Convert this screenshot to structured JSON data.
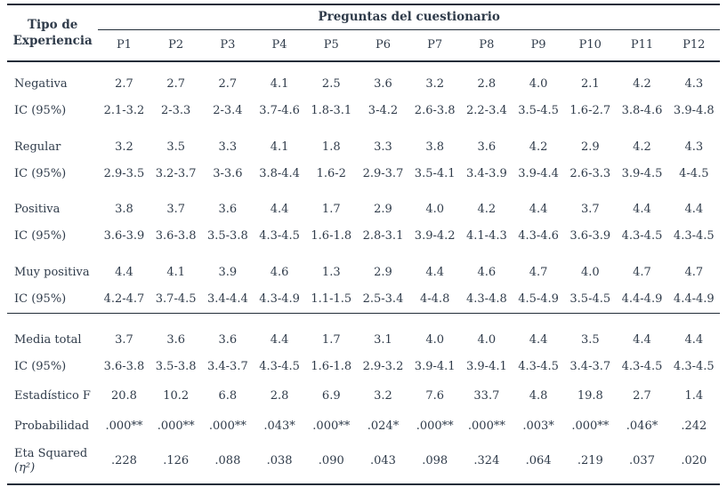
{
  "table": {
    "corner_header": "Tipo de Experiencia",
    "group_header": "Preguntas del cuestionario",
    "columns": [
      "P1",
      "P2",
      "P3",
      "P4",
      "P5",
      "P6",
      "P7",
      "P8",
      "P9",
      "P10",
      "P11",
      "P12"
    ],
    "body": [
      {
        "kind": "group-start",
        "label": "Negativa",
        "values": [
          "2.7",
          "2.7",
          "2.7",
          "4.1",
          "2.5",
          "3.6",
          "3.2",
          "2.8",
          "4.0",
          "2.1",
          "4.2",
          "4.3"
        ]
      },
      {
        "kind": "ic",
        "label": "IC (95%)",
        "values": [
          "2.1-3.2",
          "2-3.3",
          "2-3.4",
          "3.7-4.6",
          "1.8-3.1",
          "3-4.2",
          "2.6-3.8",
          "2.2-3.4",
          "3.5-4.5",
          "1.6-2.7",
          "3.8-4.6",
          "3.9-4.8"
        ]
      },
      {
        "kind": "group-start",
        "label": "Regular",
        "values": [
          "3.2",
          "3.5",
          "3.3",
          "4.1",
          "1.8",
          "3.3",
          "3.8",
          "3.6",
          "4.2",
          "2.9",
          "4.2",
          "4.3"
        ]
      },
      {
        "kind": "ic",
        "label": "IC (95%)",
        "values": [
          "2.9-3.5",
          "3.2-3.7",
          "3-3.6",
          "3.8-4.4",
          "1.6-2",
          "2.9-3.7",
          "3.5-4.1",
          "3.4-3.9",
          "3.9-4.4",
          "2.6-3.3",
          "3.9-4.5",
          "4-4.5"
        ]
      },
      {
        "kind": "group-start",
        "label": "Positiva",
        "values": [
          "3.8",
          "3.7",
          "3.6",
          "4.4",
          "1.7",
          "2.9",
          "4.0",
          "4.2",
          "4.4",
          "3.7",
          "4.4",
          "4.4"
        ]
      },
      {
        "kind": "ic",
        "label": "IC (95%)",
        "values": [
          "3.6-3.9",
          "3.6-3.8",
          "3.5-3.8",
          "4.3-4.5",
          "1.6-1.8",
          "2.8-3.1",
          "3.9-4.2",
          "4.1-4.3",
          "4.3-4.6",
          "3.6-3.9",
          "4.3-4.5",
          "4.3-4.5"
        ]
      },
      {
        "kind": "group-start",
        "label": "Muy positiva",
        "values": [
          "4.4",
          "4.1",
          "3.9",
          "4.6",
          "1.3",
          "2.9",
          "4.4",
          "4.6",
          "4.7",
          "4.0",
          "4.7",
          "4.7"
        ]
      },
      {
        "kind": "ic",
        "label": "IC (95%)",
        "values": [
          "4.2-4.7",
          "3.7-4.5",
          "3.4-4.4",
          "4.3-4.9",
          "1.1-1.5",
          "2.5-3.4",
          "4-4.8",
          "4.3-4.8",
          "4.5-4.9",
          "3.5-4.5",
          "4.4-4.9",
          "4.4-4.9"
        ]
      },
      {
        "kind": "after-rule",
        "label": "Media total",
        "values": [
          "3.7",
          "3.6",
          "3.6",
          "4.4",
          "1.7",
          "3.1",
          "4.0",
          "4.0",
          "4.4",
          "3.5",
          "4.4",
          "4.4"
        ]
      },
      {
        "kind": "ic",
        "label": "IC (95%)",
        "values": [
          "3.6-3.8",
          "3.5-3.8",
          "3.4-3.7",
          "4.3-4.5",
          "1.6-1.8",
          "2.9-3.2",
          "3.9-4.1",
          "3.9-4.1",
          "4.3-4.5",
          "3.4-3.7",
          "4.3-4.5",
          "4.3-4.5"
        ]
      },
      {
        "kind": "stat",
        "label": "Estadístico F",
        "values": [
          "20.8",
          "10.2",
          "6.8",
          "2.8",
          "6.9",
          "3.2",
          "7.6",
          "33.7",
          "4.8",
          "19.8",
          "2.7",
          "1.4"
        ]
      },
      {
        "kind": "stat",
        "label": "Probabilidad",
        "values": [
          ".000**",
          ".000**",
          ".000**",
          ".043*",
          ".000**",
          ".024*",
          ".000**",
          ".000**",
          ".003*",
          ".000**",
          ".046*",
          ".242"
        ]
      },
      {
        "kind": "eta",
        "label": "Eta Squared",
        "label2": "(η²)",
        "values": [
          ".228",
          ".126",
          ".088",
          ".038",
          ".090",
          ".043",
          ".098",
          ".324",
          ".064",
          ".219",
          ".037",
          ".020"
        ]
      }
    ]
  },
  "colors": {
    "text": "#2f3b4a",
    "rule": "#222d39",
    "background": "#ffffff"
  }
}
